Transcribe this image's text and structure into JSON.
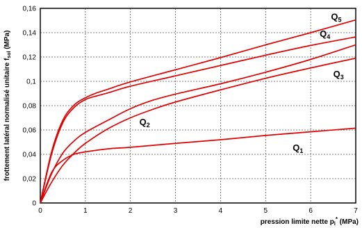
{
  "chart_data": {
    "type": "line",
    "xlabel_main": "pression limite nette p",
    "xlabel_sub": "l",
    "xlabel_sup": "*",
    "xlabel_unit": " (MPa)",
    "ylabel_main": "frottement latéral normalisé unitaire f",
    "ylabel_sub": "sol",
    "ylabel_unit": " (MPa)",
    "xlim": [
      0,
      7
    ],
    "ylim": [
      0,
      0.16
    ],
    "grid": true,
    "x_ticks": [
      {
        "v": 0,
        "label": "0"
      },
      {
        "v": 1,
        "label": "1"
      },
      {
        "v": 2,
        "label": "2"
      },
      {
        "v": 3,
        "label": "3"
      },
      {
        "v": 4,
        "label": "4"
      },
      {
        "v": 5,
        "label": "5"
      },
      {
        "v": 6,
        "label": "6"
      },
      {
        "v": 7,
        "label": "7"
      }
    ],
    "y_ticks": [
      {
        "v": 0,
        "label": "0"
      },
      {
        "v": 0.02,
        "label": "0,02"
      },
      {
        "v": 0.04,
        "label": "0,04"
      },
      {
        "v": 0.06,
        "label": "0,06"
      },
      {
        "v": 0.08,
        "label": "0,08"
      },
      {
        "v": 0.1,
        "label": "0,1"
      },
      {
        "v": 0.12,
        "label": "0,12"
      },
      {
        "v": 0.14,
        "label": "0,14"
      },
      {
        "v": 0.16,
        "label": "0,16"
      }
    ],
    "line_color": "#e00000",
    "series": [
      {
        "name": "Q1",
        "label_main": "Q",
        "label_sub": "1",
        "label_at": [
          5.6,
          0.043
        ],
        "points": [
          [
            0,
            0
          ],
          [
            0.25,
            0.025
          ],
          [
            0.5,
            0.035
          ],
          [
            0.75,
            0.04
          ],
          [
            1,
            0.042
          ],
          [
            1.5,
            0.0445
          ],
          [
            2,
            0.0458
          ],
          [
            3,
            0.049
          ],
          [
            4,
            0.052
          ],
          [
            5,
            0.0555
          ],
          [
            6,
            0.0585
          ],
          [
            7,
            0.0615
          ]
        ]
      },
      {
        "name": "Q2",
        "label_main": "Q",
        "label_sub": "2",
        "label_at": [
          2.2,
          0.064
        ],
        "points": [
          [
            0,
            0
          ],
          [
            0.25,
            0.017
          ],
          [
            0.5,
            0.031
          ],
          [
            0.75,
            0.041
          ],
          [
            1,
            0.049
          ],
          [
            1.5,
            0.061
          ],
          [
            2,
            0.07
          ],
          [
            2.5,
            0.077
          ],
          [
            3,
            0.083
          ],
          [
            4,
            0.093
          ],
          [
            5,
            0.1025
          ],
          [
            6,
            0.111
          ],
          [
            7,
            0.119
          ]
        ]
      },
      {
        "name": "Q3",
        "label_main": "Q",
        "label_sub": "3",
        "label_at": [
          6.5,
          0.1035
        ],
        "points": [
          [
            0,
            0
          ],
          [
            0.25,
            0.024
          ],
          [
            0.5,
            0.041
          ],
          [
            0.75,
            0.051
          ],
          [
            1,
            0.058
          ],
          [
            1.5,
            0.068
          ],
          [
            2,
            0.0775
          ],
          [
            2.5,
            0.0845
          ],
          [
            3,
            0.0895
          ],
          [
            4,
            0.098
          ],
          [
            5,
            0.1075
          ],
          [
            6,
            0.118
          ],
          [
            7,
            0.13
          ]
        ]
      },
      {
        "name": "Q4",
        "label_main": "Q",
        "label_sub": "4",
        "label_at": [
          6.2,
          0.1365
        ],
        "points": [
          [
            0,
            0
          ],
          [
            0.25,
            0.04
          ],
          [
            0.5,
            0.066
          ],
          [
            0.75,
            0.0785
          ],
          [
            1,
            0.085
          ],
          [
            1.25,
            0.088
          ],
          [
            1.5,
            0.0905
          ],
          [
            2,
            0.096
          ],
          [
            3,
            0.1045
          ],
          [
            4,
            0.113
          ],
          [
            5,
            0.1215
          ],
          [
            6,
            0.1295
          ],
          [
            7,
            0.1365
          ]
        ]
      },
      {
        "name": "Q5",
        "label_main": "Q",
        "label_sub": "5",
        "label_at": [
          6.45,
          0.1505
        ],
        "points": [
          [
            0,
            0
          ],
          [
            0.25,
            0.042
          ],
          [
            0.5,
            0.068
          ],
          [
            0.75,
            0.0805
          ],
          [
            1,
            0.0865
          ],
          [
            1.25,
            0.0905
          ],
          [
            1.5,
            0.0935
          ],
          [
            2,
            0.0995
          ],
          [
            3,
            0.1095
          ],
          [
            4,
            0.1195
          ],
          [
            5,
            0.13
          ],
          [
            6,
            0.14
          ],
          [
            7,
            0.1505
          ]
        ]
      }
    ]
  }
}
